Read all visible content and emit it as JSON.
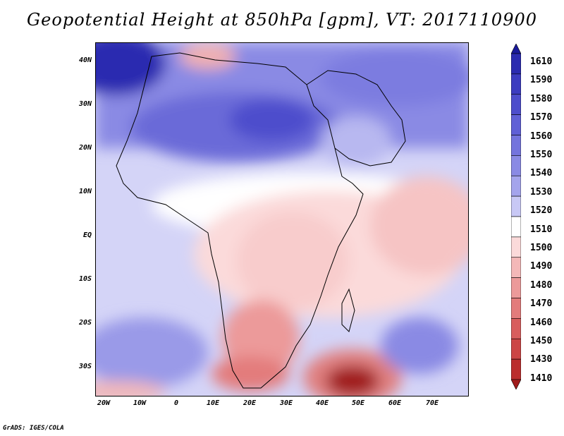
{
  "title": "Geopotential Height at 850hPa [gpm], VT: 2017110900",
  "lat_labels": [
    "40N",
    "30N",
    "20N",
    "10N",
    "EQ",
    "10S",
    "20S",
    "30S"
  ],
  "lon_labels": [
    "20W",
    "10W",
    "0",
    "10E",
    "20E",
    "30E",
    "40E",
    "50E",
    "60E",
    "70E"
  ],
  "colorbar": {
    "labels": [
      "1610",
      "1590",
      "1580",
      "1570",
      "1560",
      "1550",
      "1540",
      "1530",
      "1520",
      "1510",
      "1500",
      "1490",
      "1480",
      "1470",
      "1460",
      "1450",
      "1430",
      "1410"
    ],
    "colors": [
      "#1a1a9a",
      "#2b2bb0",
      "#3c3cc0",
      "#4d4dcc",
      "#6060d6",
      "#7474dd",
      "#8a8ae4",
      "#a4a4ec",
      "#c8c8f5",
      "#ffffff",
      "#fbdada",
      "#f4b8b8",
      "#ec9a9a",
      "#e37c7c",
      "#d85e5e",
      "#cc4545",
      "#bb2e2e",
      "#a01c1c"
    ]
  },
  "footer": "GrADS: IGES/COLA"
}
